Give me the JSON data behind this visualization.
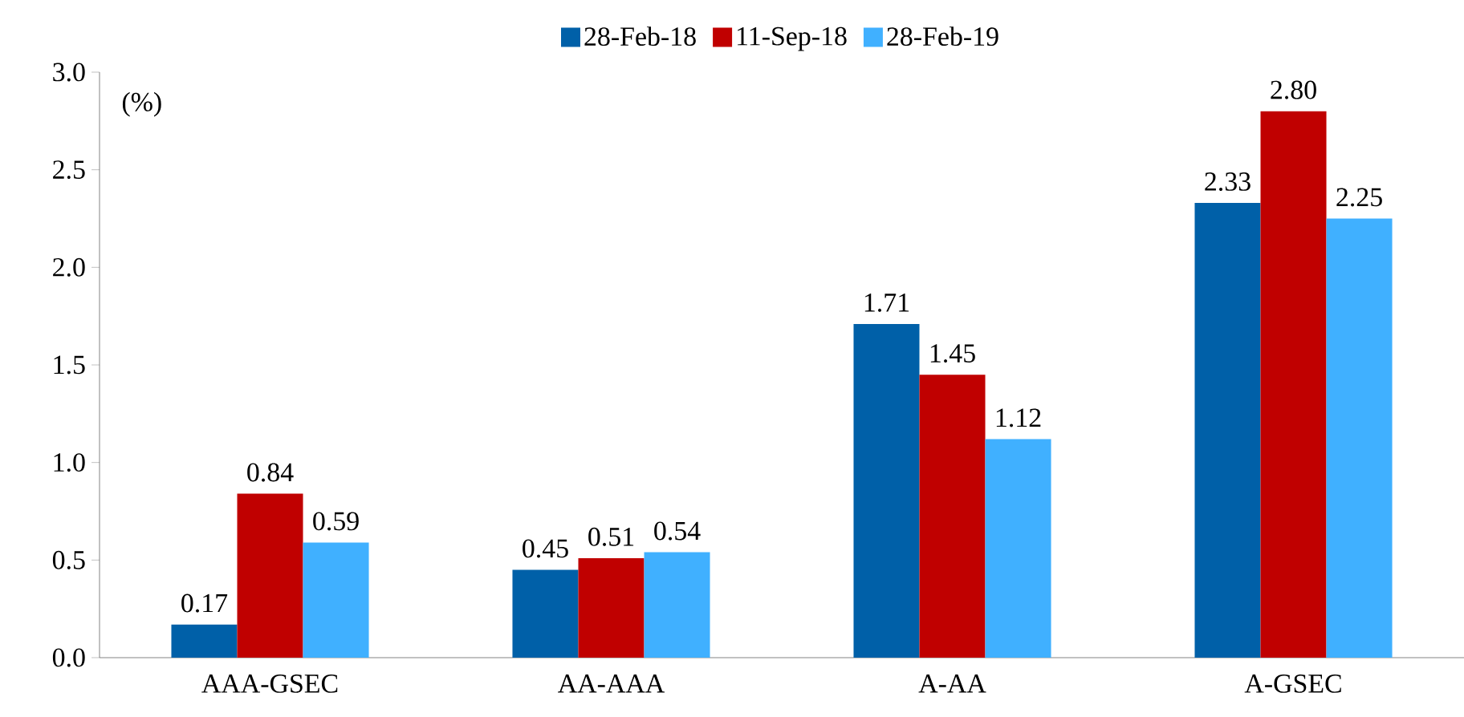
{
  "chart_data": {
    "type": "bar",
    "ylabel": "(%)",
    "categories": [
      "AAA-GSEC",
      "AA-AAA",
      "A-AA",
      "A-GSEC"
    ],
    "series": [
      {
        "name": "28-Feb-18",
        "color": "#0060a8",
        "values": [
          0.17,
          0.45,
          1.71,
          2.33
        ],
        "value_labels": [
          "0.17",
          "0.45",
          "1.71",
          "2.33"
        ]
      },
      {
        "name": "11-Sep-18",
        "color": "#c00000",
        "values": [
          0.84,
          0.51,
          1.45,
          2.8
        ],
        "value_labels": [
          "0.84",
          "0.51",
          "1.45",
          "2.80"
        ]
      },
      {
        "name": "28-Feb-19",
        "color": "#40b0ff",
        "values": [
          0.59,
          0.54,
          1.12,
          2.25
        ],
        "value_labels": [
          "0.59",
          "0.54",
          "1.12",
          "2.25"
        ]
      }
    ],
    "ylim": [
      0,
      3
    ],
    "yticks": [
      {
        "value": 0,
        "label": "0.0"
      },
      {
        "value": 0.5,
        "label": "0.5"
      },
      {
        "value": 1,
        "label": "1.0"
      },
      {
        "value": 1.5,
        "label": "1.5"
      },
      {
        "value": 2,
        "label": "2.0"
      },
      {
        "value": 2.5,
        "label": "2.5"
      },
      {
        "value": 3,
        "label": "3.0"
      }
    ],
    "grid": false,
    "legend": "top"
  }
}
